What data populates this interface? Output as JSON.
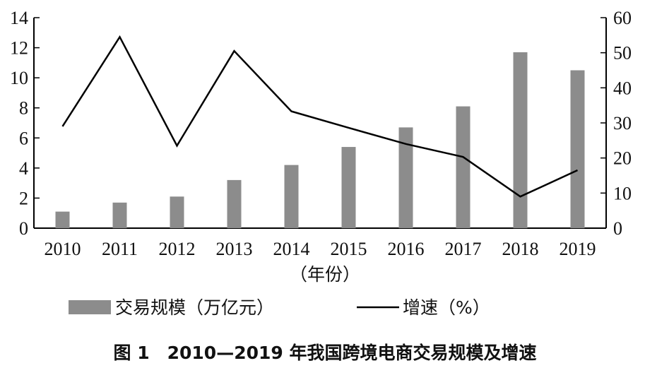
{
  "chart_data": {
    "type": "bar",
    "title": "",
    "caption": "图 1　2010—2019 年我国跨境电商交易规模及增速",
    "xlabel": "（年份）",
    "categories": [
      "2010",
      "2011",
      "2012",
      "2013",
      "2014",
      "2015",
      "2016",
      "2017",
      "2018",
      "2019"
    ],
    "left_axis": {
      "ylim": [
        0,
        14
      ],
      "ticks": [
        "0",
        "2",
        "4",
        "6",
        "8",
        "10",
        "12",
        "14"
      ]
    },
    "right_axis": {
      "ylim": [
        0,
        60
      ],
      "ticks": [
        "0",
        "10",
        "20",
        "30",
        "40",
        "50",
        "60"
      ]
    },
    "series": [
      {
        "name": "交易规模（万亿元）",
        "type": "bar",
        "axis": "left",
        "color": "#8c8c8c",
        "values": [
          1.1,
          1.7,
          2.1,
          3.2,
          4.2,
          5.4,
          6.7,
          8.1,
          11.7,
          10.5
        ]
      },
      {
        "name": "增速（%）",
        "type": "line",
        "axis": "right",
        "color": "#000000",
        "values": [
          29.0,
          54.5,
          23.5,
          50.5,
          33.3,
          28.6,
          24.0,
          20.3,
          9.0,
          16.5
        ]
      }
    ],
    "legend": {
      "position": "bottom",
      "items": [
        "交易规模（万亿元）",
        "增速（%）"
      ]
    },
    "grid": false
  }
}
